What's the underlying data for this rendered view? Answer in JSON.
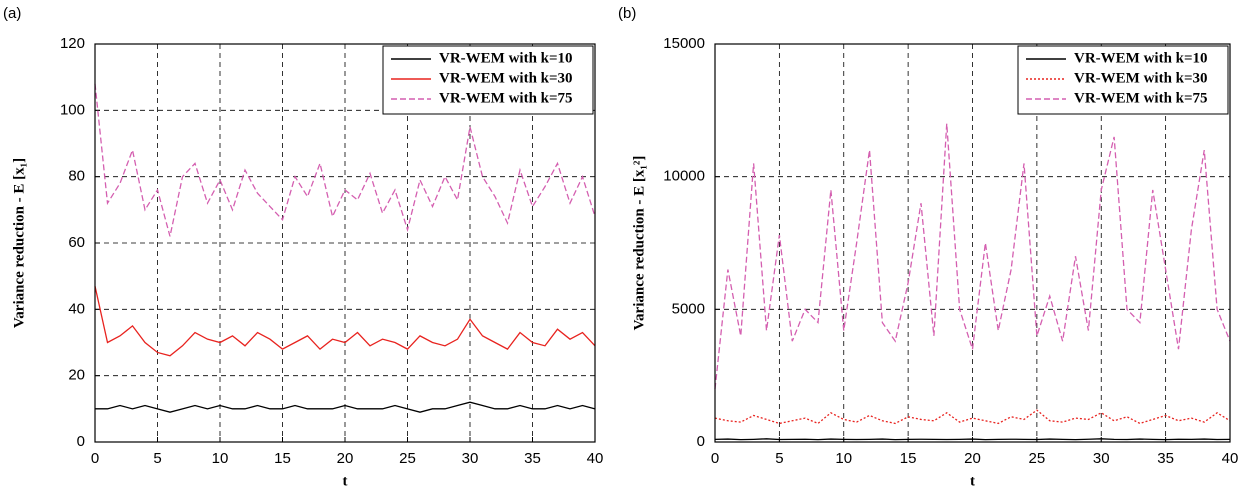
{
  "chart_data": [
    {
      "type": "line",
      "label": "(a)",
      "x_label": "t",
      "y_label": "Variance reduction - E [x₁]",
      "x": [
        0,
        1,
        2,
        3,
        4,
        5,
        6,
        7,
        8,
        9,
        10,
        11,
        12,
        13,
        14,
        15,
        16,
        17,
        18,
        19,
        20,
        21,
        22,
        23,
        24,
        25,
        26,
        27,
        28,
        29,
        30,
        31,
        32,
        33,
        34,
        35,
        36,
        37,
        38,
        39,
        40
      ],
      "xlim": [
        0,
        40
      ],
      "xticks": [
        0,
        5,
        10,
        15,
        20,
        25,
        30,
        35,
        40
      ],
      "ylim": [
        0,
        120
      ],
      "yticks": [
        0,
        20,
        40,
        60,
        80,
        100,
        120
      ],
      "grid": true,
      "legend": "upper right",
      "series": [
        {
          "name": "VR-WEM with k=10",
          "color": "#000000",
          "dash": "solid",
          "values": [
            10,
            10,
            11,
            10,
            11,
            10,
            9,
            10,
            11,
            10,
            11,
            10,
            10,
            11,
            10,
            10,
            11,
            10,
            10,
            10,
            11,
            10,
            10,
            10,
            11,
            10,
            9,
            10,
            10,
            11,
            12,
            11,
            10,
            10,
            11,
            10,
            10,
            11,
            10,
            11,
            10
          ]
        },
        {
          "name": "VR-WEM with k=30",
          "color": "#e8231f",
          "dash": "solid",
          "values": [
            47,
            30,
            32,
            35,
            30,
            27,
            26,
            29,
            33,
            31,
            30,
            32,
            29,
            33,
            31,
            28,
            30,
            32,
            28,
            31,
            30,
            33,
            29,
            31,
            30,
            28,
            32,
            30,
            29,
            31,
            37,
            32,
            30,
            28,
            33,
            30,
            29,
            34,
            31,
            33,
            29
          ]
        },
        {
          "name": "VR-WEM with k=75",
          "color": "#d45fb0",
          "dash": "dashed",
          "values": [
            108,
            72,
            78,
            88,
            70,
            76,
            62,
            80,
            84,
            72,
            79,
            70,
            82,
            75,
            71,
            67,
            80,
            74,
            84,
            68,
            76,
            73,
            81,
            69,
            76,
            64,
            79,
            71,
            80,
            73,
            95,
            80,
            74,
            66,
            82,
            71,
            77,
            84,
            72,
            80,
            68
          ]
        }
      ]
    },
    {
      "type": "line",
      "label": "(b)",
      "x_label": "t",
      "y_label": "Variance reduction - E [x₁²]",
      "x": [
        0,
        1,
        2,
        3,
        4,
        5,
        6,
        7,
        8,
        9,
        10,
        11,
        12,
        13,
        14,
        15,
        16,
        17,
        18,
        19,
        20,
        21,
        22,
        23,
        24,
        25,
        26,
        27,
        28,
        29,
        30,
        31,
        32,
        33,
        34,
        35,
        36,
        37,
        38,
        39,
        40
      ],
      "xlim": [
        0,
        40
      ],
      "xticks": [
        0,
        5,
        10,
        15,
        20,
        25,
        30,
        35,
        40
      ],
      "ylim": [
        0,
        15000
      ],
      "yticks": [
        0,
        5000,
        10000,
        15000
      ],
      "grid": true,
      "legend": "upper right",
      "series": [
        {
          "name": "VR-WEM with k=10",
          "color": "#000000",
          "dash": "solid",
          "values": [
            100,
            110,
            90,
            100,
            120,
            95,
            100,
            105,
            90,
            110,
            100,
            95,
            100,
            110,
            90,
            100,
            105,
            100,
            95,
            100,
            110,
            90,
            100,
            105,
            100,
            95,
            110,
            100,
            90,
            105,
            120,
            100,
            95,
            110,
            100,
            90,
            105,
            100,
            110,
            95,
            100
          ]
        },
        {
          "name": "VR-WEM with k=30",
          "color": "#e8231f",
          "dash": "dotted",
          "values": [
            900,
            800,
            750,
            1000,
            850,
            700,
            800,
            900,
            700,
            1100,
            850,
            750,
            1000,
            800,
            700,
            950,
            850,
            800,
            1100,
            750,
            900,
            800,
            700,
            950,
            850,
            1200,
            800,
            750,
            900,
            850,
            1100,
            800,
            950,
            700,
            850,
            1000,
            800,
            900,
            750,
            1100,
            800
          ]
        },
        {
          "name": "VR-WEM with k=75",
          "color": "#d45fb0",
          "dash": "dashed",
          "values": [
            2000,
            6500,
            4000,
            10500,
            4200,
            7800,
            3800,
            5000,
            4500,
            9500,
            4200,
            7500,
            11000,
            4500,
            3800,
            6000,
            9000,
            4000,
            12000,
            5000,
            3500,
            7500,
            4200,
            6500,
            10500,
            4000,
            5500,
            3800,
            7000,
            4200,
            9500,
            11500,
            5000,
            4500,
            9500,
            6500,
            3500,
            8000,
            11000,
            5000,
            3800
          ]
        }
      ]
    }
  ]
}
